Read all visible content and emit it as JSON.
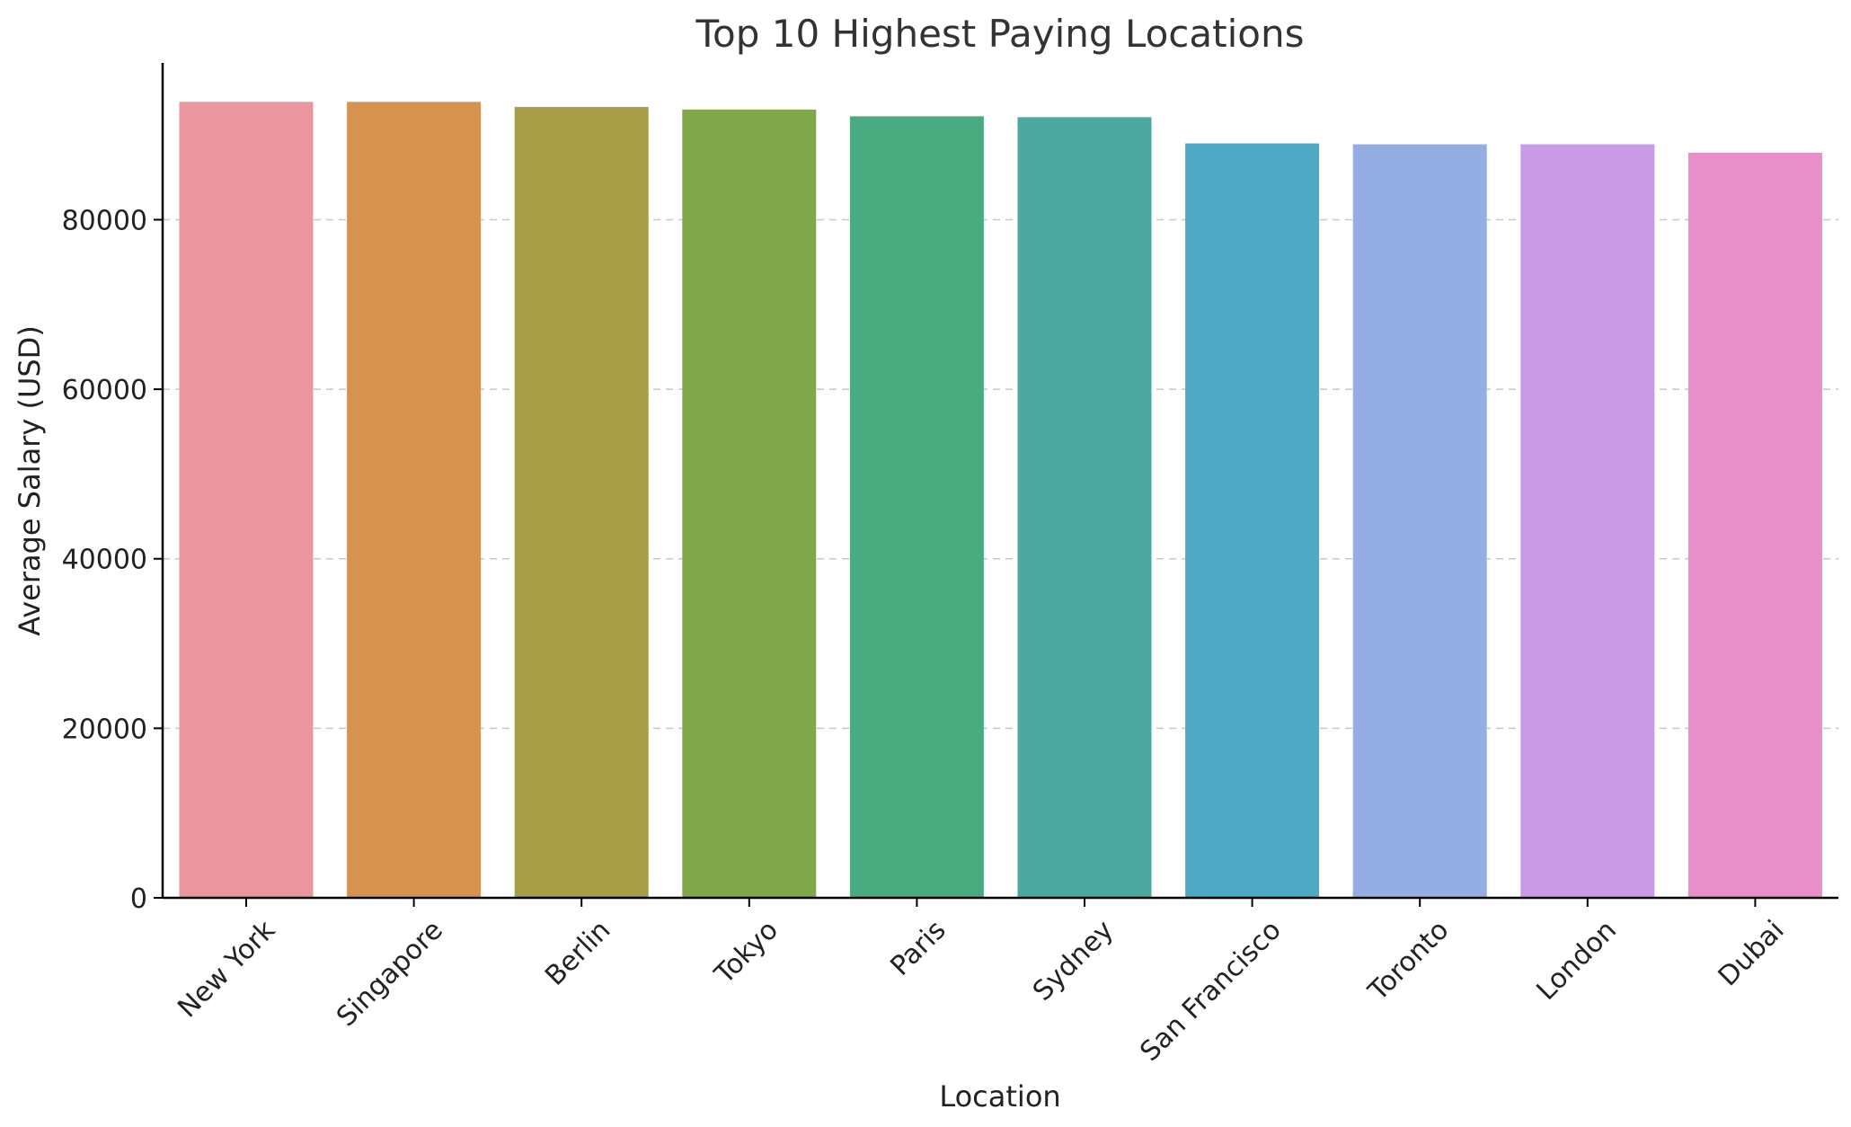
{
  "chart_data": {
    "type": "bar",
    "title": "Top 10 Highest Paying Locations",
    "xlabel": "Location",
    "ylabel": "Average Salary (USD)",
    "categories": [
      "New York",
      "Singapore",
      "Berlin",
      "Tokyo",
      "Paris",
      "Sydney",
      "San Francisco",
      "Toronto",
      "London",
      "Dubai"
    ],
    "values": [
      93900,
      93900,
      93300,
      93000,
      92200,
      92100,
      89000,
      88900,
      88900,
      87900
    ],
    "colors": [
      "#e9969f",
      "#d6934f",
      "#a89d47",
      "#80a84a",
      "#4aab80",
      "#4ca9a2",
      "#4eaac4",
      "#94aee3",
      "#cb9ae6",
      "#e88fc9"
    ],
    "yticks": [
      0,
      20000,
      40000,
      60000,
      80000
    ],
    "ylim": [
      0,
      98500
    ],
    "grid": true,
    "grid_axis": "y"
  }
}
